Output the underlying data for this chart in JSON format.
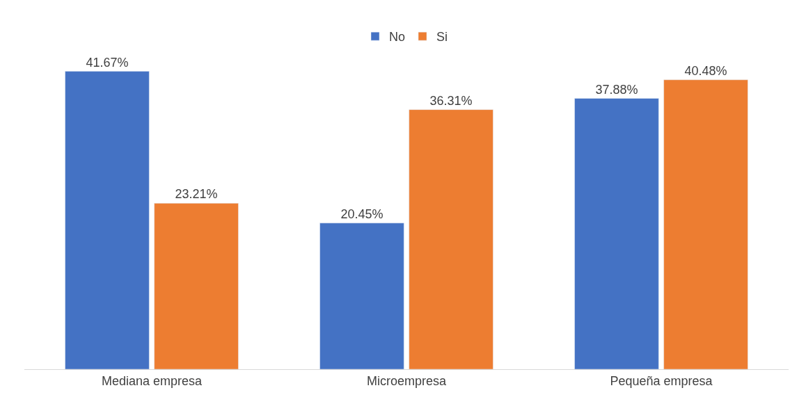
{
  "chart_data": {
    "type": "bar",
    "categories": [
      "Mediana empresa",
      "Microempresa",
      "Pequeña empresa"
    ],
    "series": [
      {
        "name": "No",
        "color": "#4472c4",
        "values": [
          41.67,
          20.45,
          37.88
        ],
        "value_labels": [
          "41.67%",
          "20.45%",
          "37.88%"
        ]
      },
      {
        "name": "Si",
        "color": "#ed7d31",
        "values": [
          23.21,
          36.31,
          40.48
        ],
        "value_labels": [
          "23.21%",
          "36.31%",
          "40.48%"
        ]
      }
    ],
    "legend": "top",
    "tick_labels": "x"
  }
}
